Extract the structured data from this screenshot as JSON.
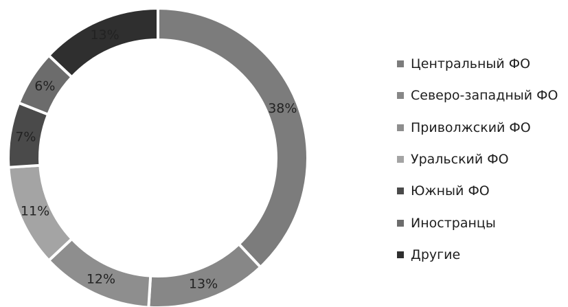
{
  "chart_data": {
    "type": "pie",
    "variant": "donut",
    "title": "",
    "categories": [
      "Центральный ФО",
      "Северо-западный ФО",
      "Приволжский ФО",
      "Уральский ФО",
      "Южный ФО",
      "Иностранцы",
      "Другие"
    ],
    "values": [
      38,
      13,
      12,
      11,
      7,
      6,
      13
    ],
    "labels": [
      "38%",
      "13%",
      "12%",
      "11%",
      "7%",
      "6%",
      "13%"
    ],
    "colors": [
      "#7c7c7c",
      "#878787",
      "#8e8e8e",
      "#a4a4a4",
      "#4a4a4a",
      "#6c6c6c",
      "#2f2f2f"
    ],
    "legend": {
      "placement": "right"
    }
  }
}
